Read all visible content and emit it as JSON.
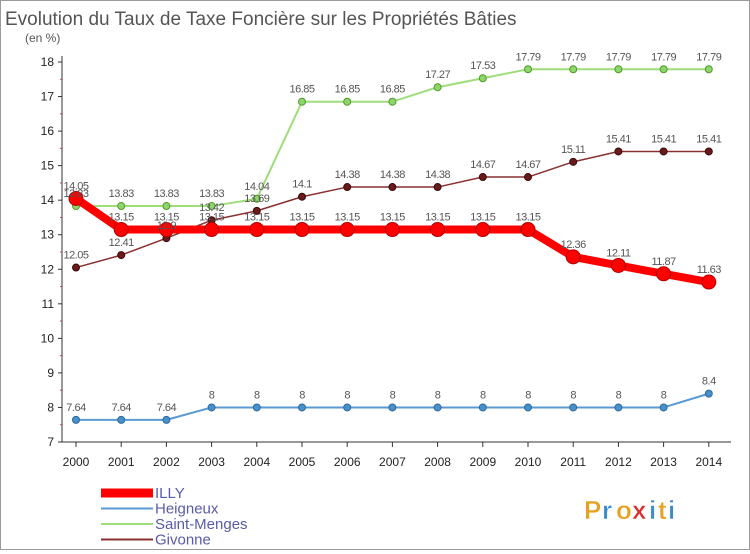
{
  "chart_data": {
    "type": "line",
    "title": "Evolution du Taux de Taxe Foncière sur les Propriétés Bâties",
    "subtitle": "(en %)",
    "x": [
      "2000",
      "2001",
      "2002",
      "2003",
      "2004",
      "2005",
      "2006",
      "2007",
      "2008",
      "2009",
      "2010",
      "2011",
      "2012",
      "2013",
      "2014"
    ],
    "ylim": [
      7,
      18
    ],
    "yticks": [
      "7",
      "8",
      "9",
      "10",
      "11",
      "12",
      "13",
      "14",
      "15",
      "16",
      "17",
      "18"
    ],
    "series": [
      {
        "name": "ILLY",
        "color": "#ff0000",
        "values": [
          14.05,
          13.15,
          13.15,
          13.15,
          13.15,
          13.15,
          13.15,
          13.15,
          13.15,
          13.15,
          13.15,
          12.36,
          12.11,
          11.87,
          11.63
        ],
        "labels": [
          "14.05",
          "13.15",
          "13.15",
          "13.15",
          "13.15",
          "13.15",
          "13.15",
          "13.15",
          "13.15",
          "13.15",
          "13.15",
          "12.36",
          "12.11",
          "11.87",
          "11.63"
        ]
      },
      {
        "name": "Heigneux",
        "color": "#4a90c8",
        "values": [
          7.64,
          7.64,
          7.64,
          8,
          8,
          8,
          8,
          8,
          8,
          8,
          8,
          8,
          8,
          8,
          8.4
        ],
        "labels": [
          "7.64",
          "7.64",
          "7.64",
          "8",
          "8",
          "8",
          "8",
          "8",
          "8",
          "8",
          "8",
          "8",
          "8",
          "8",
          "8.4"
        ]
      },
      {
        "name": "Saint-Menges",
        "color": "#8ed66a",
        "values": [
          13.83,
          13.83,
          13.83,
          13.83,
          14.04,
          16.85,
          16.85,
          16.85,
          17.27,
          17.53,
          17.79,
          17.79,
          17.79,
          17.79,
          17.79
        ],
        "labels": [
          "13.83",
          "13.83",
          "13.83",
          "13.83",
          "14.04",
          "16.85",
          "16.85",
          "16.85",
          "17.27",
          "17.53",
          "17.79",
          "17.79",
          "17.79",
          "17.79",
          "17.79"
        ]
      },
      {
        "name": "Givonne",
        "color": "#7a2a2a",
        "values": [
          12.05,
          12.41,
          12.9,
          13.42,
          13.69,
          14.1,
          14.38,
          14.38,
          14.38,
          14.67,
          14.67,
          15.11,
          15.41,
          15.41,
          15.41
        ],
        "labels": [
          "12.05",
          "12.41",
          "12.9",
          "13.42",
          "13.69",
          "14.1",
          "14.38",
          "14.38",
          "14.38",
          "14.67",
          "14.67",
          "15.11",
          "15.41",
          "15.41",
          "15.41"
        ]
      }
    ],
    "legend_position": "bottom-left",
    "grid": false
  },
  "logo": {
    "text": "Proxiti",
    "letter_colors": [
      "#e8a020",
      "#3a8ad0",
      "#e8a020",
      "#d83030",
      "#3a8ad0",
      "#e8a020",
      "#3a8ad0"
    ]
  }
}
